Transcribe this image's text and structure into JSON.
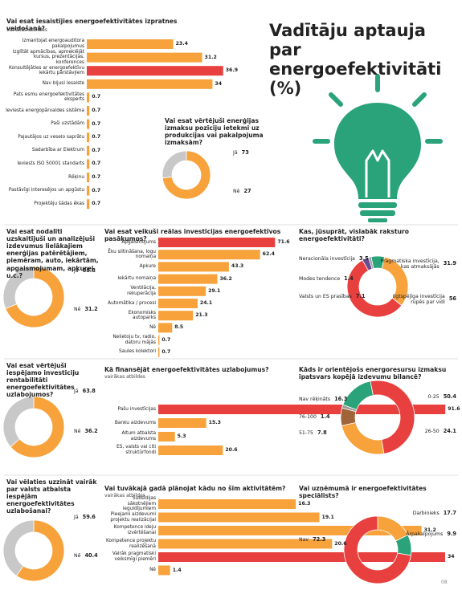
{
  "header": {
    "title": "Vadītāju aptauja par energoefektivitāti (%)"
  },
  "footer": {
    "page": "08"
  },
  "chart_data": [
    {
      "type": "bar",
      "title": "Vai esat iesaistījies energoefektivitātes izpratnes veidošanā?",
      "subtitle": "vairākas atbildes",
      "categories": [
        "Izmantojat energoauditora pakalpojumus",
        "Izglītāt apmācības, apmeklējāt kursus, prezentācijas, konferences",
        "Konsultējāties ar energoefektīvu iekārtu pārstāvjiem",
        "Nav bijusi iesaiste",
        "Pats esmu energoefektivitātes eksperts",
        "Ieviesta energopārvaldes sistēma",
        "Paši uzstādām",
        "Pajautājos uz veselo saprātu",
        "Sadarbība ar Elektrum",
        "Ieviests ISO 50001 standarts",
        "Rēķinu",
        "Pastāvīgi interesējos un apgūstu",
        "Projektēju šādas ēkas"
      ],
      "values": [
        23.4,
        31.2,
        36.9,
        34,
        0.7,
        0.7,
        0.7,
        0.7,
        0.7,
        0.7,
        0.7,
        0.7,
        0.7
      ],
      "colors": [
        "#f7a23b",
        "#f7a23b",
        "#e8403e",
        "#f7a23b",
        "#f7a23b",
        "#f7a23b",
        "#f7a23b",
        "#f7a23b",
        "#f7a23b",
        "#f7a23b",
        "#f7a23b",
        "#f7a23b",
        "#f7a23b"
      ]
    },
    {
      "type": "pie",
      "title": "Vai esat vērtējuši enerģijas izmaksu pozīciju ietekmi uz produkcijas vai pakalpojuma izmaksām?",
      "categories": [
        "Jā",
        "Nē"
      ],
      "values": [
        73,
        27
      ],
      "colors": [
        "#f7a23b",
        "#c8c8c8"
      ]
    },
    {
      "type": "pie",
      "title": "Vai esat nodalīti uzskaitījuši un analizējuši izdevumus lielākajiem enerģijas patērētājiem, piemēram, auto, iekārtām, apgaismojumam, apkurei u.c.?",
      "categories": [
        "Jā",
        "Nē"
      ],
      "values": [
        68.8,
        31.2
      ],
      "colors": [
        "#f7a23b",
        "#c8c8c8"
      ]
    },
    {
      "type": "bar",
      "title": "Vai esat veikuši reālas investīcijas energoefektīvos pasākumos?",
      "categories": [
        "Apgaismojums",
        "Ēku siltināšana, logu nomaiņa",
        "Apkure",
        "Iekārtu nomaiņa",
        "Ventilācija, rekuperācija",
        "Automātika / procesi",
        "Ekonomisks autoparks",
        "Nē",
        "Nelietoju tv, radio, datoru mājās",
        "Saules kolektori"
      ],
      "values": [
        71.6,
        62.4,
        43.3,
        36.2,
        29.1,
        24.1,
        21.3,
        8.5,
        0.7,
        0.7
      ],
      "colors": [
        "#e8403e",
        "#f7a23b",
        "#f7a23b",
        "#f7a23b",
        "#f7a23b",
        "#f7a23b",
        "#f7a23b",
        "#f7a23b",
        "#f7a23b",
        "#f7a23b"
      ]
    },
    {
      "type": "pie",
      "title": "Kas, jūsuprāt, vislabāk raksturo energoefektivitāti?",
      "categories": [
        "Neracionāla investīcija",
        "Modes tendence",
        "Valsts un ES prasības",
        "Pragmatiska investīcija, kas atmaksājās",
        "Ilgtspējīga investīcija rūpēs par vidi"
      ],
      "values": [
        3.5,
        1.4,
        7.1,
        31.9,
        56
      ],
      "colors": [
        "#6a4c93",
        "#9a9a9a",
        "#2aa37a",
        "#f7a23b",
        "#e8403e"
      ]
    },
    {
      "type": "pie",
      "title": "Vai esat vērtējuši iespējamo investīciju rentabilitāti energoefektivitātes uzlabojumos?",
      "categories": [
        "Jā",
        "Nē"
      ],
      "values": [
        63.8,
        36.2
      ],
      "colors": [
        "#f7a23b",
        "#c8c8c8"
      ]
    },
    {
      "type": "bar",
      "title": "Kā finansējāt energoefektivitātes uzlabojumus?",
      "subtitle": "vairākas atbildes",
      "categories": [
        "Pašu investīcijas",
        "Banku aizdevums",
        "Altum atbalsta aizdevums",
        "ES, valsts vai citi struktūrfondi"
      ],
      "values": [
        91.6,
        15.3,
        5.3,
        20.6
      ],
      "colors": [
        "#e8403e",
        "#f7a23b",
        "#f7a23b",
        "#f7a23b"
      ]
    },
    {
      "type": "pie",
      "title": "Kāds ir orientējošs energoresursu izmaksu īpatsvars kopējā izdevumu bilancē?",
      "categories": [
        "Nav rēķināts",
        "0-25",
        "26-50",
        "51-75",
        "76-100"
      ],
      "values": [
        16.3,
        50.4,
        24.1,
        7.8,
        1.4
      ],
      "colors": [
        "#2aa37a",
        "#e8403e",
        "#f7a23b",
        "#a0633a",
        "#9a9a9a"
      ]
    },
    {
      "type": "pie",
      "title": "Vai vēlaties uzzināt vairāk par valsts atbalsta iespējām energoefektivitātes uzlabošanai?",
      "categories": [
        "Jā",
        "Nē"
      ],
      "values": [
        59.6,
        40.4
      ],
      "colors": [
        "#f7a23b",
        "#c8c8c8"
      ]
    },
    {
      "type": "bar",
      "title": "Vai tuvākajā gadā plānojat kādu no šīm aktivitātēm?",
      "subtitle": "vairākas atbildes",
      "categories": [
        "Subsīdijas sākotnējiem ieguldījumiem",
        "Pieejami aizdevumi projektu realizācijai",
        "Kompetence ideju izvērtēšanai",
        "Kompetence projektu realizēšanā",
        "Vairāk pragmatiski veiksmīgi piemēri",
        "Nē"
      ],
      "values": [
        16.3,
        19.1,
        31.2,
        20.6,
        34,
        1.4
      ],
      "colors": [
        "#f7a23b",
        "#f7a23b",
        "#f7a23b",
        "#f7a23b",
        "#e8403e",
        "#f7a23b"
      ]
    },
    {
      "type": "pie",
      "title": "Vai uzņēmumā ir energoefektivitātes speciālists?",
      "categories": [
        "Darbinieks",
        "Ārpakalpojums",
        "Nav"
      ],
      "values": [
        17.7,
        9.9,
        72.3
      ],
      "colors": [
        "#f7a23b",
        "#2aa37a",
        "#e8403e"
      ]
    }
  ]
}
